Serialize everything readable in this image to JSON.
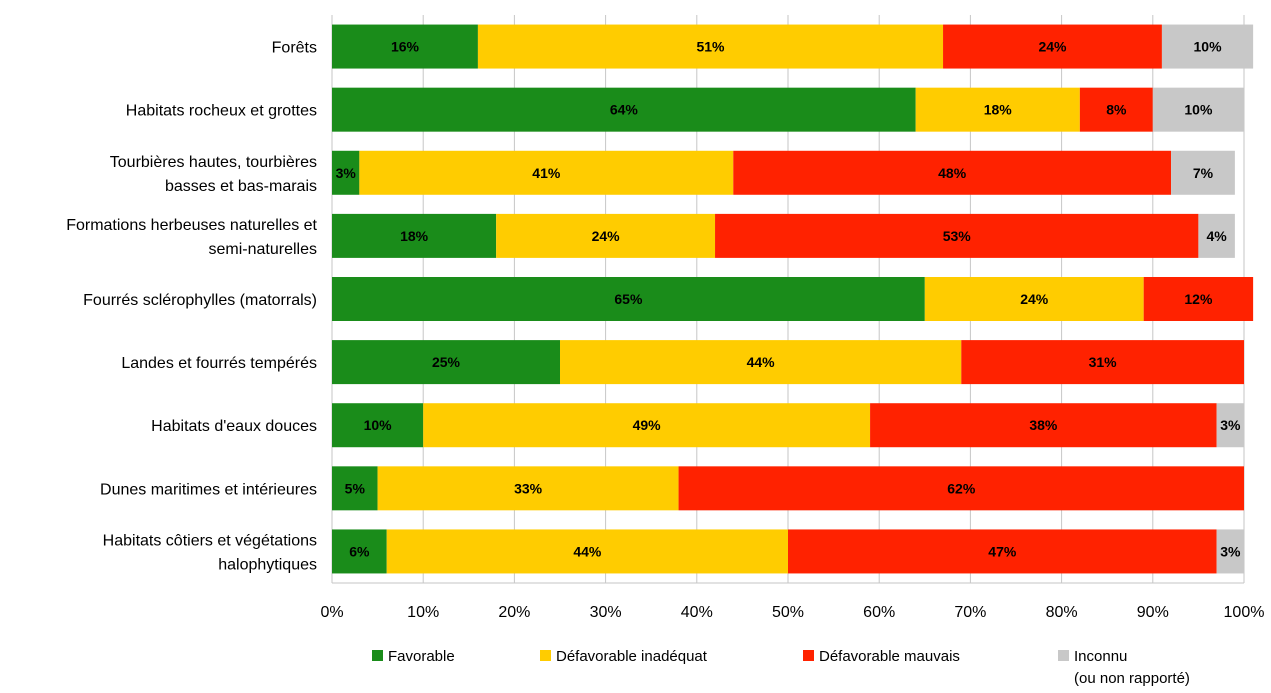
{
  "chart_data": {
    "type": "bar",
    "orientation": "horizontal",
    "stacked": "percent",
    "title": "",
    "xlabel": "",
    "ylabel": "",
    "xlim": [
      0,
      100
    ],
    "x_ticks": [
      "0%",
      "10%",
      "20%",
      "30%",
      "40%",
      "50%",
      "60%",
      "70%",
      "80%",
      "90%",
      "100%"
    ],
    "grid": "vertical",
    "legend_position": "bottom",
    "categories": [
      [
        "Forêts"
      ],
      [
        "Habitats rocheux et grottes"
      ],
      [
        "Tourbières hautes, tourbières",
        "basses et bas-marais"
      ],
      [
        "Formations herbeuses naturelles et",
        "semi-naturelles"
      ],
      [
        "Fourrés sclérophylles (matorrals)"
      ],
      [
        "Landes et fourrés tempérés"
      ],
      [
        "Habitats d'eaux douces"
      ],
      [
        "Dunes maritimes et intérieures"
      ],
      [
        "Habitats côtiers et végétations",
        "halophytiques"
      ]
    ],
    "series": [
      {
        "name": "Favorable",
        "color": "#1a8c1a",
        "values": [
          16,
          64,
          3,
          18,
          65,
          25,
          10,
          5,
          6
        ],
        "labels": [
          "16%",
          "64%",
          "3%",
          "18%",
          "65%",
          "25%",
          "10%",
          "5%",
          "6%"
        ]
      },
      {
        "name": "Défavorable inadéquat",
        "color": "#ffcc00",
        "values": [
          51,
          18,
          41,
          24,
          24,
          44,
          49,
          33,
          44
        ],
        "labels": [
          "51%",
          "18%",
          "41%",
          "24%",
          "24%",
          "44%",
          "49%",
          "33%",
          "44%"
        ]
      },
      {
        "name": "Défavorable mauvais",
        "color": "#ff2200",
        "values": [
          24,
          8,
          48,
          53,
          12,
          31,
          38,
          62,
          47
        ],
        "labels": [
          "24%",
          "8%",
          "48%",
          "53%",
          "12%",
          "31%",
          "38%",
          "62%",
          "47%"
        ]
      },
      {
        "name": "Inconnu (ou non rapporté)",
        "legend_lines": [
          "Inconnu",
          "(ou non rapporté)"
        ],
        "color": "#c8c8c8",
        "values": [
          10,
          10,
          7,
          4,
          0,
          0,
          3,
          0,
          3
        ],
        "labels": [
          "10%",
          "10%",
          "7%",
          "4%",
          "",
          "",
          "3%",
          "",
          "3%"
        ]
      }
    ]
  }
}
